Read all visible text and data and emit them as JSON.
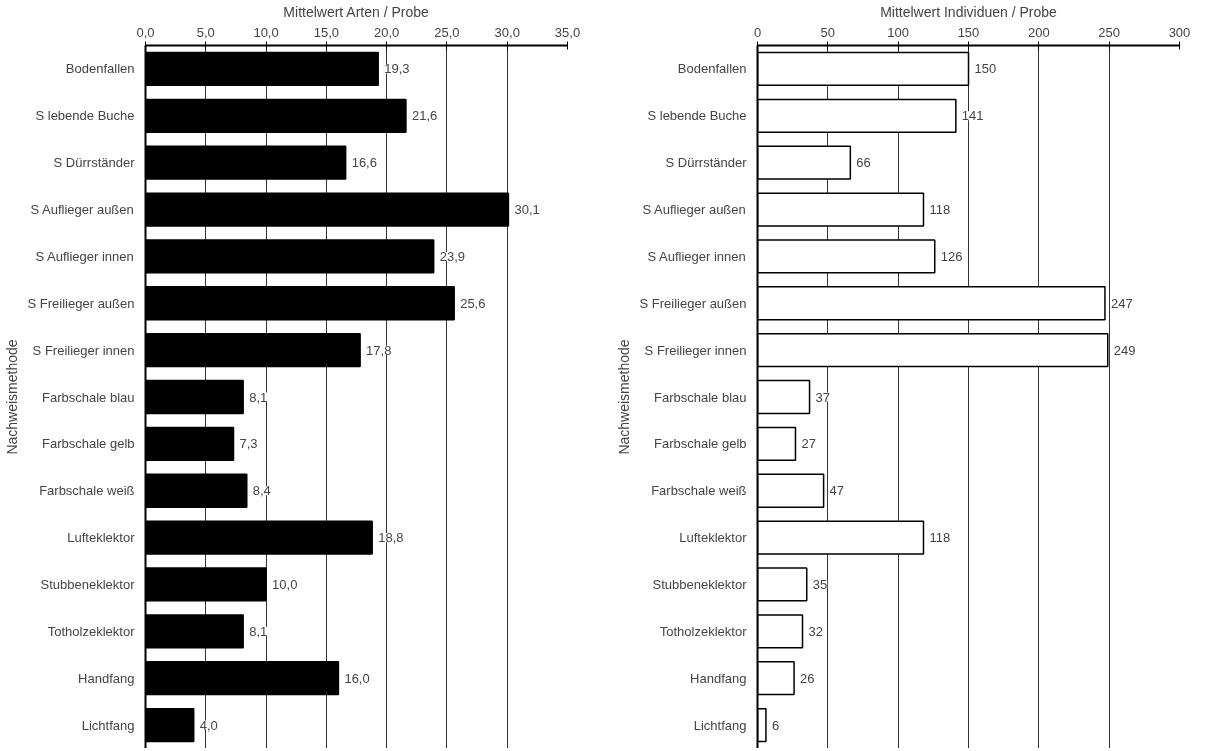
{
  "chart_data": [
    {
      "type": "bar",
      "orientation": "horizontal",
      "xlabel": "Mittelwert Arten / Probe",
      "ylabel": "Nachweismethode",
      "categories": [
        "Bodenfallen",
        "S lebende Buche",
        "S Dürrständer",
        "S Auflieger außen",
        "S Auflieger innen",
        "S Freilieger außen",
        "S Freilieger innen",
        "Farbschale blau",
        "Farbschale gelb",
        "Farbschale weiß",
        "Lufteklektor",
        "Stubbeneklektor",
        "Totholzeklektor",
        "Handfang",
        "Lichtfang"
      ],
      "values": [
        19.3,
        21.6,
        16.6,
        30.1,
        23.9,
        25.6,
        17.8,
        8.1,
        7.3,
        8.4,
        18.8,
        10.0,
        8.1,
        16.0,
        4.0
      ],
      "value_labels": [
        "19,3",
        "21,6",
        "16,6",
        "30,1",
        "23,9",
        "25,6",
        "17,8",
        "8,1",
        "7,3",
        "8,4",
        "18,8",
        "10,0",
        "8,1",
        "16,0",
        "4,0"
      ],
      "color": "#000000",
      "xlim": [
        0,
        35
      ],
      "xticks": [
        {
          "value": 0,
          "label": "0,0"
        },
        {
          "value": 5,
          "label": "5,0"
        },
        {
          "value": 10,
          "label": "10,0"
        },
        {
          "value": 15,
          "label": "15,0"
        },
        {
          "value": 20,
          "label": "20,0"
        },
        {
          "value": 25,
          "label": "25,0"
        },
        {
          "value": 30,
          "label": "30,0"
        },
        {
          "value": 35,
          "label": "35,0"
        }
      ],
      "grid": "x"
    },
    {
      "type": "bar",
      "orientation": "horizontal",
      "xlabel": "Mittelwert Individuen / Probe",
      "ylabel": "Nachweismethode",
      "categories": [
        "Bodenfallen",
        "S lebende Buche",
        "S Dürrständer",
        "S Auflieger außen",
        "S Auflieger innen",
        "S Freilieger außen",
        "S Freilieger innen",
        "Farbschale blau",
        "Farbschale gelb",
        "Farbschale weiß",
        "Lufteklektor",
        "Stubbeneklektor",
        "Totholzeklektor",
        "Handfang",
        "Lichtfang"
      ],
      "values": [
        150,
        141,
        66,
        118,
        126,
        247,
        249,
        37,
        27,
        47,
        118,
        35,
        32,
        26,
        6
      ],
      "data_labels": true,
      "color": "#ffffff",
      "xlim": [
        0,
        300
      ],
      "xticks": [
        0,
        50,
        100,
        150,
        200,
        250,
        300
      ],
      "grid": "x"
    }
  ]
}
